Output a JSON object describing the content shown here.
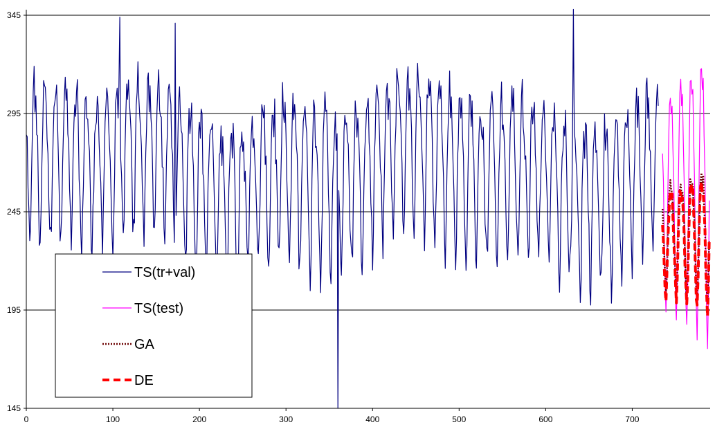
{
  "chart_data": {
    "type": "line",
    "title": "",
    "xlabel": "",
    "ylabel": "",
    "xlim": [
      0,
      790
    ],
    "ylim": [
      145,
      345
    ],
    "x_ticks": [
      0,
      100,
      200,
      300,
      400,
      500,
      600,
      700
    ],
    "y_ticks": [
      145,
      195,
      245,
      295,
      345
    ],
    "grid": "horizontal",
    "legend_position": "bottom-left",
    "series": [
      {
        "name": "TS(tr+val)",
        "color": "#000080",
        "style": "solid",
        "x_range": [
          0,
          730
        ],
        "period": 12,
        "base_level": 257,
        "amplitude": 42,
        "min": 145,
        "max": 348
      },
      {
        "name": "TS(test)",
        "color": "#ff00ff",
        "style": "solid",
        "x_range": [
          735,
          789
        ],
        "period": 12,
        "min": 165,
        "max": 322
      },
      {
        "name": "GA",
        "color": "#6b0000",
        "style": "dotted",
        "x_range": [
          735,
          789
        ],
        "period": 12,
        "min": 192,
        "max": 266
      },
      {
        "name": "DE",
        "color": "#ff0000",
        "style": "dashed",
        "x_range": [
          735,
          789
        ],
        "period": 12,
        "min": 188,
        "max": 262
      }
    ]
  }
}
